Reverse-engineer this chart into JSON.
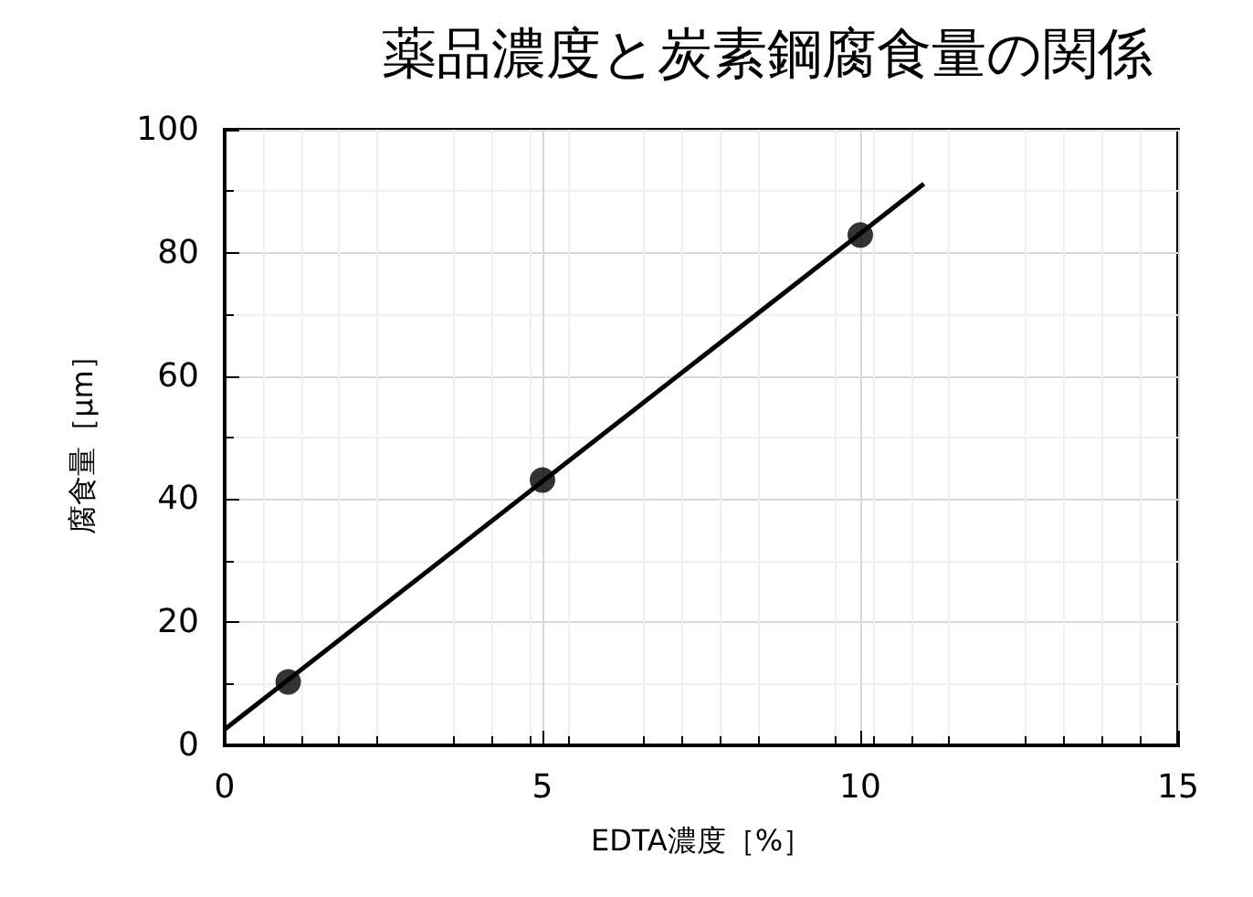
{
  "chart_data": {
    "type": "scatter",
    "title": "薬品濃度と炭素鋼腐食量の関係",
    "xlabel": "EDTA濃度［%］",
    "ylabel": "腐食量［μm］",
    "xlim": [
      0,
      15
    ],
    "xticks": [
      0,
      5,
      10,
      15
    ],
    "ylim": [
      0,
      100
    ],
    "yticks": [
      0,
      20,
      40,
      60,
      80,
      100
    ],
    "grid": true,
    "series": [
      {
        "color": "#000000",
        "marker": "circle",
        "x": [
          1,
          5,
          10
        ],
        "values": [
          10.3,
          43.1,
          82.9
        ]
      },
      {
        "type": "line",
        "color": "#000000",
        "marker": "none",
        "line_style": "solid",
        "x": [
          0,
          11
        ],
        "values": [
          2.6,
          91.2
        ]
      }
    ]
  }
}
